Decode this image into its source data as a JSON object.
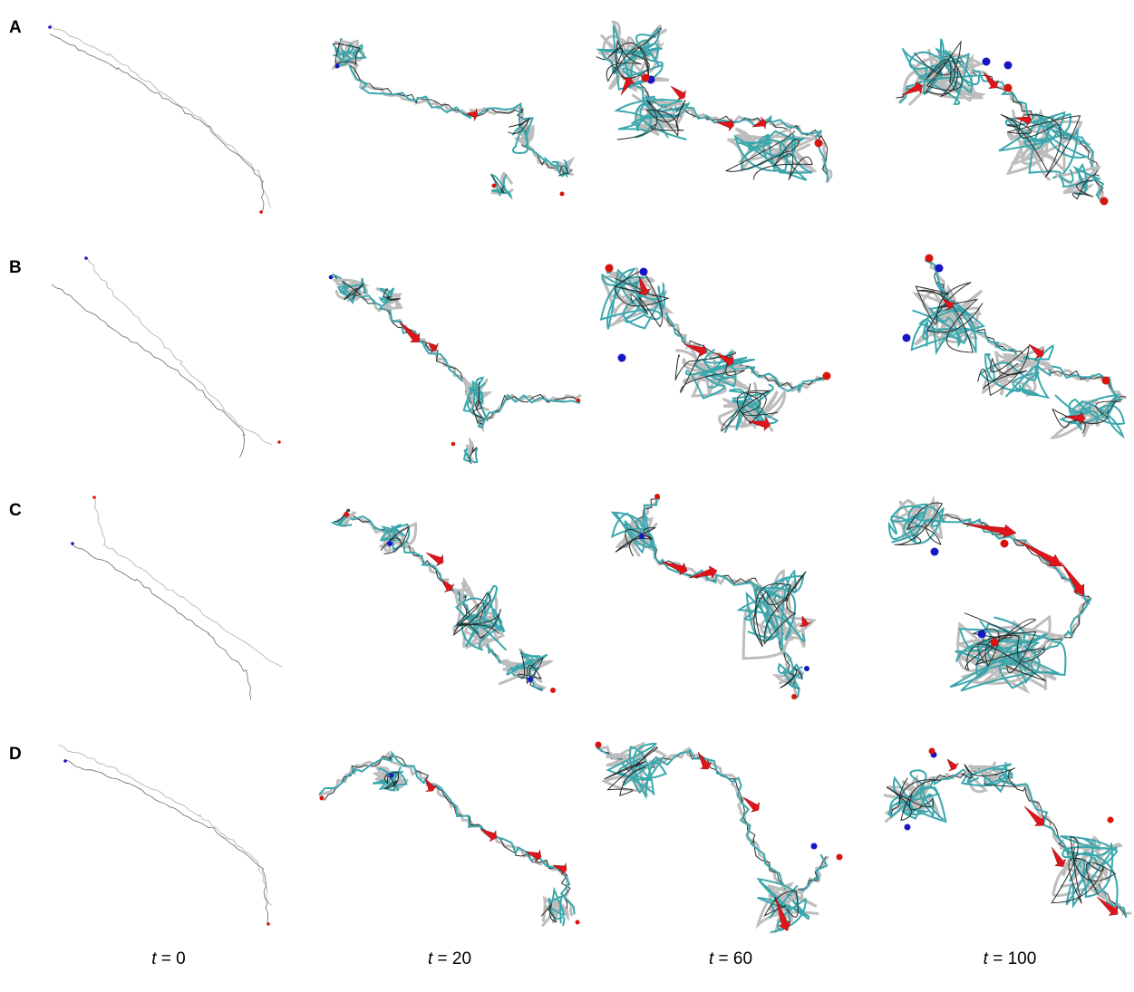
{
  "rows": [
    {
      "label": "A"
    },
    {
      "label": "B"
    },
    {
      "label": "C"
    },
    {
      "label": "D"
    }
  ],
  "columns": [
    {
      "var": "t",
      "value": "0"
    },
    {
      "var": "t",
      "value": "20"
    },
    {
      "var": "t",
      "value": "60"
    },
    {
      "var": "t",
      "value": "100"
    }
  ],
  "colors": {
    "coil": "#bdbdbd",
    "coil_dark": "#2a2a2a",
    "turn": "#3aa7ad",
    "strand": "#e0151b",
    "n_terminus": "#1616c4",
    "c_terminus": "#d8140f"
  }
}
